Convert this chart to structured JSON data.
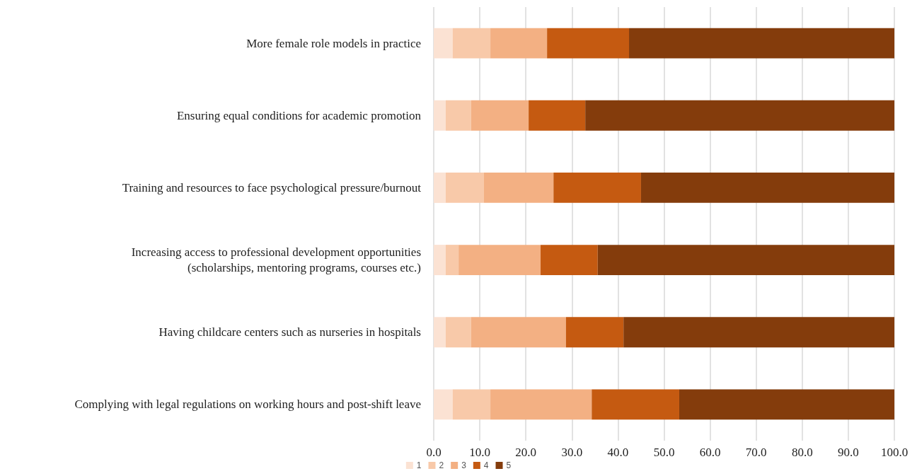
{
  "chart_data": {
    "type": "bar",
    "orientation": "horizontal",
    "stacked": true,
    "categories": [
      "More female role models in practice",
      "Ensuring equal conditions for academic promotion",
      "Training and resources to face psychological pressure/burnout",
      "Increasing access to professional development opportunities\n(scholarships, mentoring programs, courses etc.)",
      "Having childcare centers such as nurseries in hospitals",
      "Complying with legal regulations on working hours and post-shift leave"
    ],
    "series": [
      {
        "name": "1",
        "color": "#fbe2d3",
        "values": [
          4.1,
          2.6,
          2.6,
          2.6,
          2.6,
          4.1
        ]
      },
      {
        "name": "2",
        "color": "#f8c9a9",
        "values": [
          8.2,
          5.5,
          8.3,
          2.8,
          5.5,
          8.2
        ]
      },
      {
        "name": "3",
        "color": "#f3b083",
        "values": [
          12.3,
          12.5,
          15.1,
          17.8,
          20.6,
          22.0
        ]
      },
      {
        "name": "4",
        "color": "#c55a11",
        "values": [
          17.8,
          12.3,
          19.0,
          12.4,
          12.5,
          19.0
        ]
      },
      {
        "name": "5",
        "color": "#843c0c",
        "values": [
          57.6,
          67.1,
          55.0,
          64.4,
          58.8,
          46.7
        ]
      }
    ],
    "xlim": [
      0,
      100
    ],
    "xticks": [
      {
        "value": 0,
        "label": "0.0"
      },
      {
        "value": 10,
        "label": "10.0"
      },
      {
        "value": 20,
        "label": "20.0"
      },
      {
        "value": 30,
        "label": "30.0"
      },
      {
        "value": 40,
        "label": "40.0"
      },
      {
        "value": 50,
        "label": "50.0"
      },
      {
        "value": 60,
        "label": "60.0"
      },
      {
        "value": 70,
        "label": "70.0"
      },
      {
        "value": 80,
        "label": "80.0"
      },
      {
        "value": 90,
        "label": "90.0"
      },
      {
        "value": 100,
        "label": "100.0"
      }
    ],
    "grid": "x",
    "legend": "bottom"
  }
}
